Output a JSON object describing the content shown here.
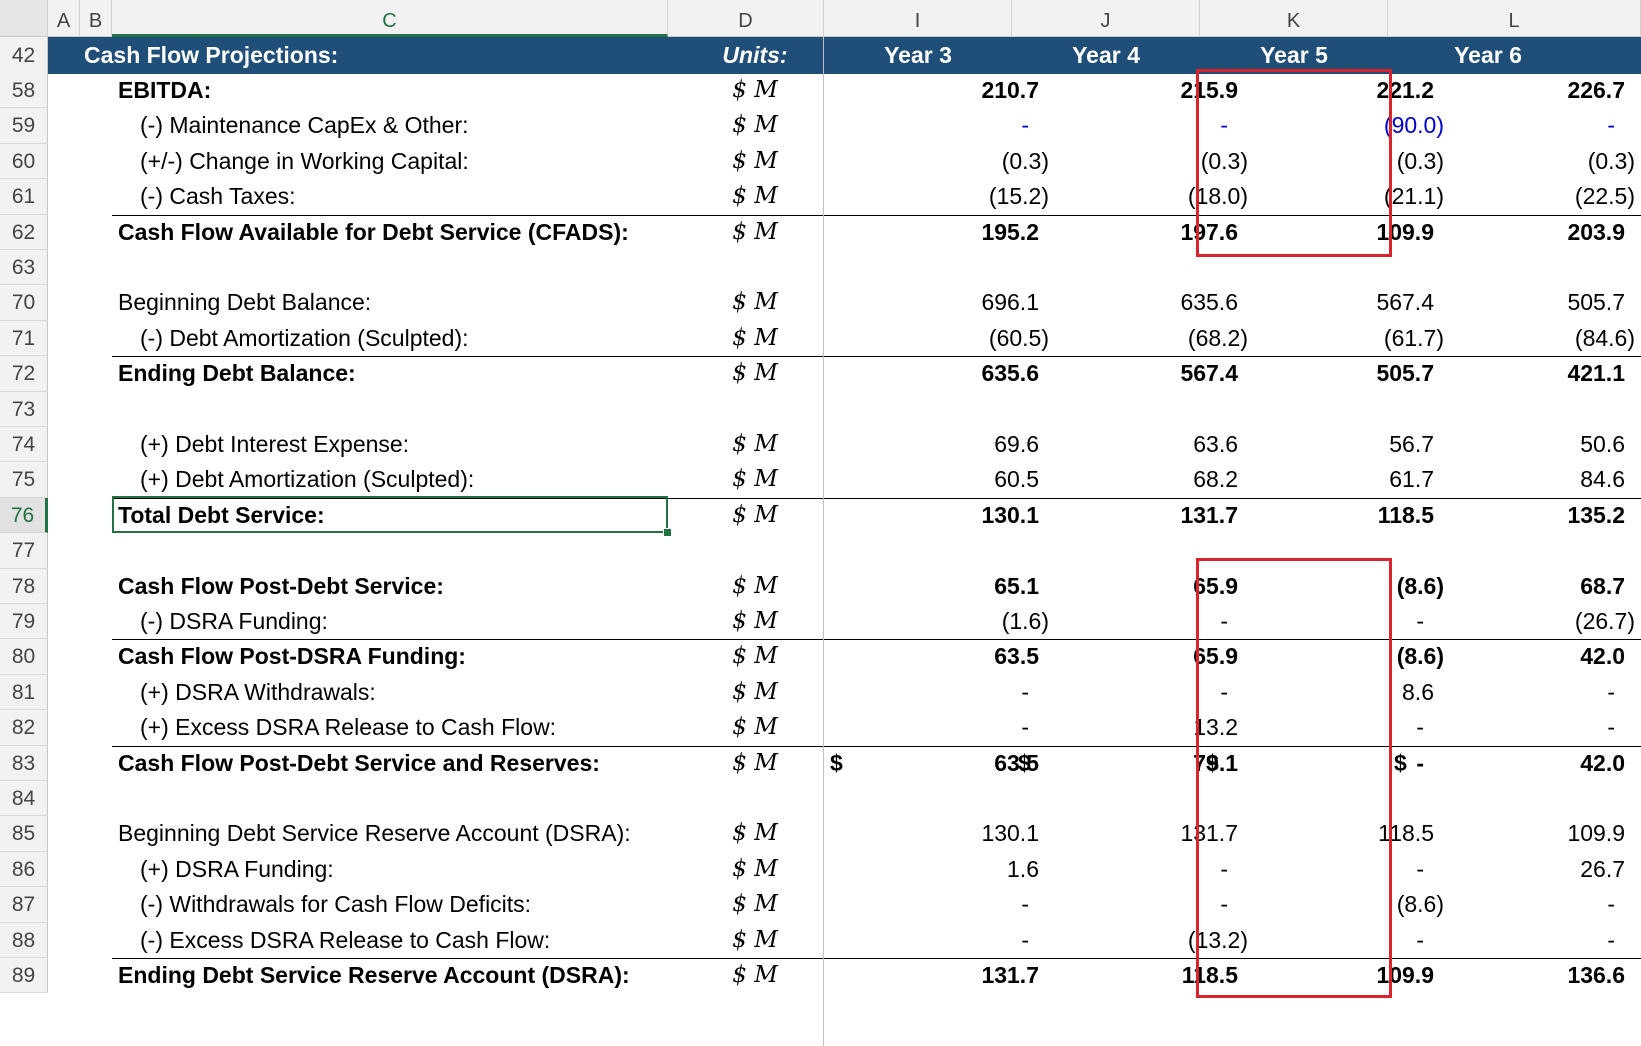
{
  "columns": [
    "A",
    "B",
    "C",
    "D",
    "I",
    "J",
    "K",
    "L"
  ],
  "header": {
    "row_number": "42",
    "title": "Cash Flow Projections:",
    "units": "Units:",
    "years": [
      "Year 3",
      "Year 4",
      "Year 5",
      "Year 6"
    ]
  },
  "rows": [
    {
      "num": "58",
      "label": "EBITDA:",
      "unit": "$ M",
      "values": [
        "210.7",
        "215.9",
        "221.2",
        "226.7"
      ],
      "bold": true,
      "indent": false,
      "line": false
    },
    {
      "num": "59",
      "label": "(-) Maintenance CapEx & Other:",
      "unit": "$ M",
      "values": [
        "-",
        "-",
        "(90.0)",
        "-"
      ],
      "bold": false,
      "indent": true,
      "line": false,
      "blue": true
    },
    {
      "num": "60",
      "label": "(+/-) Change in Working Capital:",
      "unit": "$ M",
      "values": [
        "(0.3)",
        "(0.3)",
        "(0.3)",
        "(0.3)"
      ],
      "bold": false,
      "indent": true,
      "line": false
    },
    {
      "num": "61",
      "label": "(-) Cash Taxes:",
      "unit": "$ M",
      "values": [
        "(15.2)",
        "(18.0)",
        "(21.1)",
        "(22.5)"
      ],
      "bold": false,
      "indent": true,
      "line": false
    },
    {
      "num": "62",
      "label": "Cash Flow Available for Debt Service (CFADS):",
      "unit": "$ M",
      "values": [
        "195.2",
        "197.6",
        "109.9",
        "203.9"
      ],
      "bold": true,
      "indent": false,
      "line": true
    },
    {
      "num": "63",
      "label": "",
      "unit": "",
      "values": [
        "",
        "",
        "",
        ""
      ],
      "bold": false,
      "indent": false,
      "line": false
    },
    {
      "num": "70",
      "label": "Beginning Debt Balance:",
      "unit": "$ M",
      "values": [
        "696.1",
        "635.6",
        "567.4",
        "505.7"
      ],
      "bold": false,
      "indent": false,
      "line": false
    },
    {
      "num": "71",
      "label": "(-) Debt Amortization (Sculpted):",
      "unit": "$ M",
      "values": [
        "(60.5)",
        "(68.2)",
        "(61.7)",
        "(84.6)"
      ],
      "bold": false,
      "indent": true,
      "line": false
    },
    {
      "num": "72",
      "label": "Ending Debt Balance:",
      "unit": "$ M",
      "values": [
        "635.6",
        "567.4",
        "505.7",
        "421.1"
      ],
      "bold": true,
      "indent": false,
      "line": true
    },
    {
      "num": "73",
      "label": "",
      "unit": "",
      "values": [
        "",
        "",
        "",
        ""
      ],
      "bold": false,
      "indent": false,
      "line": false
    },
    {
      "num": "74",
      "label": "(+) Debt Interest Expense:",
      "unit": "$ M",
      "values": [
        "69.6",
        "63.6",
        "56.7",
        "50.6"
      ],
      "bold": false,
      "indent": true,
      "line": false
    },
    {
      "num": "75",
      "label": "(+) Debt Amortization (Sculpted):",
      "unit": "$ M",
      "values": [
        "60.5",
        "68.2",
        "61.7",
        "84.6"
      ],
      "bold": false,
      "indent": true,
      "line": false
    },
    {
      "num": "76",
      "label": "Total Debt Service:",
      "unit": "$ M",
      "values": [
        "130.1",
        "131.7",
        "118.5",
        "135.2"
      ],
      "bold": true,
      "indent": false,
      "line": true,
      "selected": true
    },
    {
      "num": "77",
      "label": "",
      "unit": "",
      "values": [
        "",
        "",
        "",
        ""
      ],
      "bold": false,
      "indent": false,
      "line": false
    },
    {
      "num": "78",
      "label": "Cash Flow Post-Debt Service:",
      "unit": "$ M",
      "values": [
        "65.1",
        "65.9",
        "(8.6)",
        "68.7"
      ],
      "bold": true,
      "indent": false,
      "line": false
    },
    {
      "num": "79",
      "label": "(-) DSRA Funding:",
      "unit": "$ M",
      "values": [
        "(1.6)",
        "-",
        "-",
        "(26.7)"
      ],
      "bold": false,
      "indent": true,
      "line": false
    },
    {
      "num": "80",
      "label": "Cash Flow Post-DSRA Funding:",
      "unit": "$ M",
      "values": [
        "63.5",
        "65.9",
        "(8.6)",
        "42.0"
      ],
      "bold": true,
      "indent": false,
      "line": true
    },
    {
      "num": "81",
      "label": "(+) DSRA Withdrawals:",
      "unit": "$ M",
      "values": [
        "-",
        "-",
        "8.6",
        "-"
      ],
      "bold": false,
      "indent": true,
      "line": false
    },
    {
      "num": "82",
      "label": "(+) Excess DSRA Release to Cash Flow:",
      "unit": "$ M",
      "values": [
        "-",
        "13.2",
        "-",
        "-"
      ],
      "bold": false,
      "indent": true,
      "line": false
    },
    {
      "num": "83",
      "label": "Cash Flow Post-Debt Service and Reserves:",
      "unit": "$ M",
      "values": [
        "63.5",
        "79.1",
        "-",
        "42.0"
      ],
      "bold": true,
      "indent": false,
      "line": true,
      "currency": "$"
    },
    {
      "num": "84",
      "label": "",
      "unit": "",
      "values": [
        "",
        "",
        "",
        ""
      ],
      "bold": false,
      "indent": false,
      "line": false
    },
    {
      "num": "85",
      "label": "Beginning Debt Service Reserve Account (DSRA):",
      "unit": "$ M",
      "values": [
        "130.1",
        "131.7",
        "118.5",
        "109.9"
      ],
      "bold": false,
      "indent": false,
      "line": false
    },
    {
      "num": "86",
      "label": "(+) DSRA Funding:",
      "unit": "$ M",
      "values": [
        "1.6",
        "-",
        "-",
        "26.7"
      ],
      "bold": false,
      "indent": true,
      "line": false
    },
    {
      "num": "87",
      "label": "(-) Withdrawals for Cash Flow Deficits:",
      "unit": "$ M",
      "values": [
        "-",
        "-",
        "(8.6)",
        "-"
      ],
      "bold": false,
      "indent": true,
      "line": false
    },
    {
      "num": "88",
      "label": "(-) Excess DSRA Release to Cash Flow:",
      "unit": "$ M",
      "values": [
        "-",
        "(13.2)",
        "-",
        "-"
      ],
      "bold": false,
      "indent": true,
      "line": false
    },
    {
      "num": "89",
      "label": "Ending Debt Service Reserve Account (DSRA):",
      "unit": "$ M",
      "values": [
        "131.7",
        "118.5",
        "109.9",
        "136.6"
      ],
      "bold": true,
      "indent": false,
      "line": true
    }
  ],
  "colors": {
    "header_bg": "#1f4e78",
    "highlight": "#d9232d",
    "selection": "#217346",
    "input_blue": "#0000cc"
  }
}
